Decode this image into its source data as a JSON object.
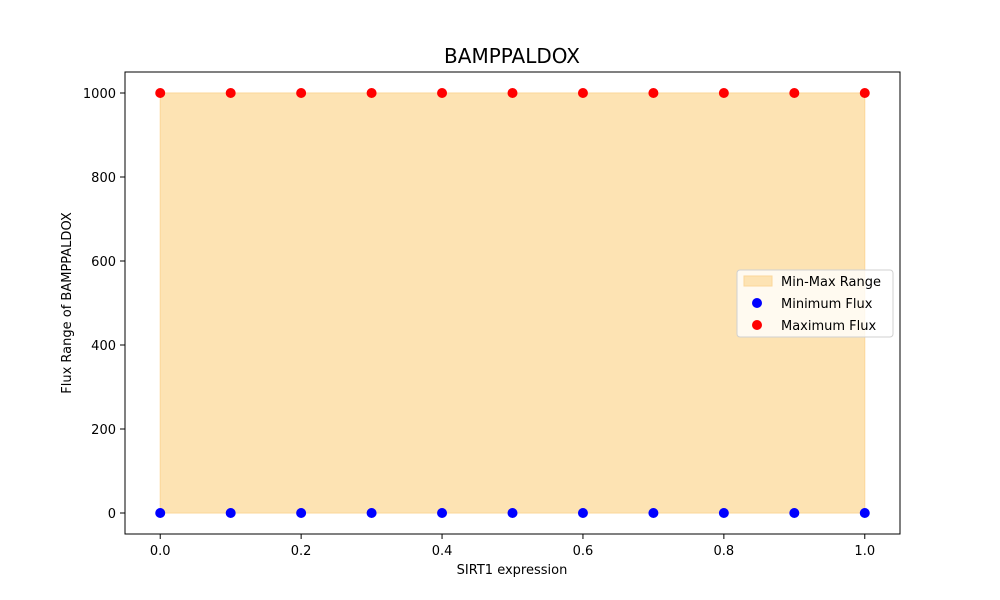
{
  "chart_data": {
    "type": "scatter",
    "title": "BAMPPALDOX",
    "xlabel": "SIRT1 expression",
    "ylabel": "Flux Range of BAMPPALDOX",
    "xlim": [
      -0.05,
      1.05
    ],
    "ylim": [
      -50,
      1050
    ],
    "x_ticks": [
      0.0,
      0.2,
      0.4,
      0.6,
      0.8,
      1.0
    ],
    "x_tick_labels": [
      "0.0",
      "0.2",
      "0.4",
      "0.6",
      "0.8",
      "1.0"
    ],
    "y_ticks": [
      0,
      200,
      400,
      600,
      800,
      1000
    ],
    "y_tick_labels": [
      "0",
      "200",
      "400",
      "600",
      "800",
      "1000"
    ],
    "grid": false,
    "legend_position": "center-right",
    "x": [
      0.0,
      0.1,
      0.2,
      0.3,
      0.4,
      0.5,
      0.6,
      0.7,
      0.8,
      0.9,
      1.0
    ],
    "range_band": {
      "name": "Min-Max Range",
      "color": "#fde3b3",
      "edge_color": "#fbd79a"
    },
    "series": [
      {
        "name": "Minimum Flux",
        "color": "#0000ff",
        "values": [
          0,
          0,
          0,
          0,
          0,
          0,
          0,
          0,
          0,
          0,
          0
        ]
      },
      {
        "name": "Maximum Flux",
        "color": "#ff0000",
        "values": [
          1000,
          1000,
          1000,
          1000,
          1000,
          1000,
          1000,
          1000,
          1000,
          1000,
          1000
        ]
      }
    ]
  }
}
